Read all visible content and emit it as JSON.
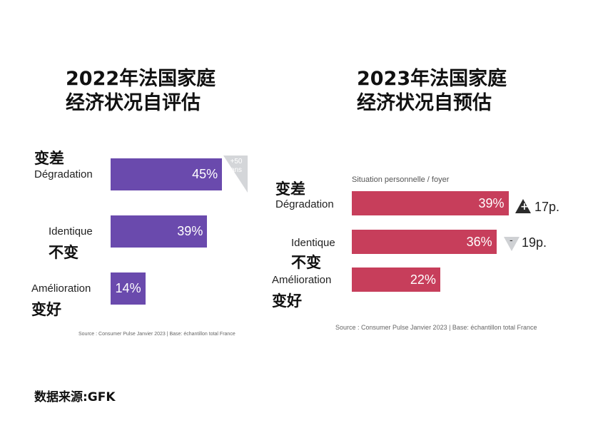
{
  "left": {
    "title_line1": "2022年法国家庭",
    "title_line2": "经济状况自评估",
    "source": "Source : Consumer Pulse Janvier 2023 | Base: échantillon total France",
    "badge": "+50\nans",
    "badge_l1": "+50",
    "badge_l2": "ans",
    "color": "#6a4aad"
  },
  "right": {
    "title_line1": "2023年法国家庭",
    "title_line2": "经济状况自预估",
    "subtitle": "Situation personnelle / foyer",
    "source": "Source : Consumer Pulse Janvier 2023 | Base: échantillon total France",
    "color": "#c73e5b"
  },
  "footer": "数据来源:GFK",
  "chart_data": [
    {
      "type": "bar",
      "orientation": "horizontal",
      "title": "2022年法国家庭经济状况自评估",
      "categories": [
        "变差 Dégradation",
        "Identique 不变",
        "Amélioration 变好"
      ],
      "values": [
        45,
        39,
        14
      ],
      "labels": [
        "45%",
        "39%",
        "14%"
      ],
      "unit": "%"
    },
    {
      "type": "bar",
      "orientation": "horizontal",
      "title": "2023年法国家庭经济状况自预估",
      "subtitle": "Situation personnelle / foyer",
      "categories": [
        "变差 Dégradation",
        "Identique 不变",
        "Amélioration 变好"
      ],
      "values": [
        39,
        36,
        22
      ],
      "labels": [
        "39%",
        "36%",
        "22%"
      ],
      "unit": "%",
      "changes": [
        "+17p.",
        "-19p.",
        null
      ],
      "change_labels": [
        "17p.",
        "19p."
      ]
    }
  ],
  "labels": {
    "cn_worse": "变差",
    "fr_worse": "Dégradation",
    "fr_same": "Identique",
    "cn_same": "不变",
    "fr_better": "Amélioration",
    "cn_better": "变好"
  }
}
